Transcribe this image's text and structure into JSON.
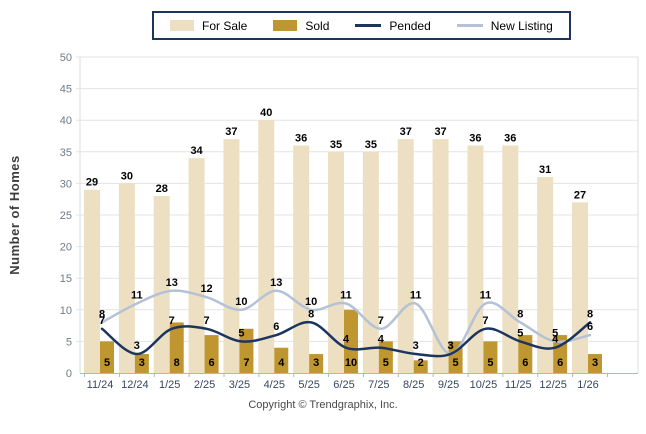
{
  "legend": {
    "items": [
      {
        "label": "For Sale",
        "type": "box",
        "color": "#EDE0C2"
      },
      {
        "label": "Sold",
        "type": "box",
        "color": "#BF962F"
      },
      {
        "label": "Pended",
        "type": "line",
        "color": "#1C355E"
      },
      {
        "label": "New Listing",
        "type": "line",
        "color": "#B4C1D6"
      }
    ],
    "border_color": "#1C355E"
  },
  "chart_data": {
    "type": "combo-bar-line",
    "categories": [
      "11/24",
      "12/24",
      "1/25",
      "2/25",
      "3/25",
      "4/25",
      "5/25",
      "6/25",
      "7/25",
      "8/25",
      "9/25",
      "10/25",
      "11/25",
      "12/25",
      "1/26"
    ],
    "series": [
      {
        "name": "For Sale",
        "type": "bar",
        "color": "#EDE0C2",
        "values": [
          29,
          30,
          28,
          34,
          37,
          40,
          36,
          35,
          35,
          37,
          37,
          36,
          36,
          31,
          27
        ]
      },
      {
        "name": "Sold",
        "type": "bar",
        "color": "#BF962F",
        "values": [
          5,
          3,
          8,
          6,
          7,
          4,
          3,
          10,
          5,
          2,
          5,
          5,
          6,
          6,
          3
        ]
      },
      {
        "name": "Pended",
        "type": "line",
        "color": "#1C355E",
        "values": [
          7,
          3,
          7,
          7,
          5,
          6,
          8,
          4,
          4,
          3,
          3,
          7,
          5,
          4,
          8
        ]
      },
      {
        "name": "New Listing",
        "type": "line",
        "color": "#B4C1D6",
        "values": [
          8,
          11,
          13,
          12,
          10,
          13,
          10,
          11,
          7,
          11,
          3,
          11,
          8,
          5,
          6
        ]
      }
    ],
    "title": "",
    "xlabel": "",
    "ylabel": "Number of Homes",
    "ylim": [
      0,
      50
    ],
    "ytick_step": 5,
    "grid": true,
    "legend_position": "top",
    "value_labels": true
  },
  "colors": {
    "gridline": "#E3E3E3",
    "axis": "#A9B9C9",
    "plot_border": "#D9DFE5",
    "x_tick_label": "#36465E",
    "y_tick_label": "#6D7B88",
    "value_label": "#000000"
  },
  "footer": {
    "copyright": "Copyright © Trendgraphix, Inc."
  }
}
